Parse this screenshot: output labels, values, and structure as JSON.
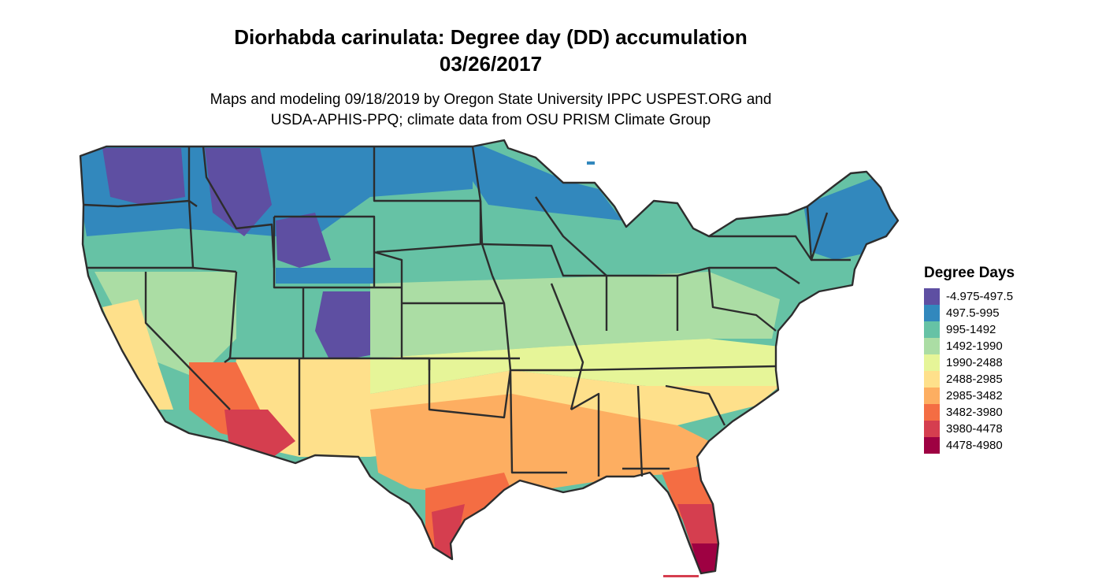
{
  "title": {
    "line1": "Diorhabda carinulata: Degree day (DD) accumulation",
    "line2": "03/26/2017"
  },
  "subtitle": {
    "line1": "Maps and modeling 09/18/2019 by Oregon State University IPPC USPEST.ORG and",
    "line2": "USDA-APHIS-PPQ; climate data from OSU PRISM Climate Group"
  },
  "legend": {
    "title": "Degree Days",
    "items": [
      {
        "label": "-4.975-497.5",
        "color": "#5e4fa2"
      },
      {
        "label": "497.5-995",
        "color": "#3288bd"
      },
      {
        "label": "995-1492",
        "color": "#66c2a5"
      },
      {
        "label": "1492-1990",
        "color": "#abdda4"
      },
      {
        "label": "1990-2488",
        "color": "#e6f598"
      },
      {
        "label": "2488-2985",
        "color": "#fee08b"
      },
      {
        "label": "2985-3482",
        "color": "#fdae61"
      },
      {
        "label": "3482-3980",
        "color": "#f46d43"
      },
      {
        "label": "3980-4478",
        "color": "#d53e4f"
      },
      {
        "label": "4478-4980",
        "color": "#9e0142"
      }
    ]
  }
}
